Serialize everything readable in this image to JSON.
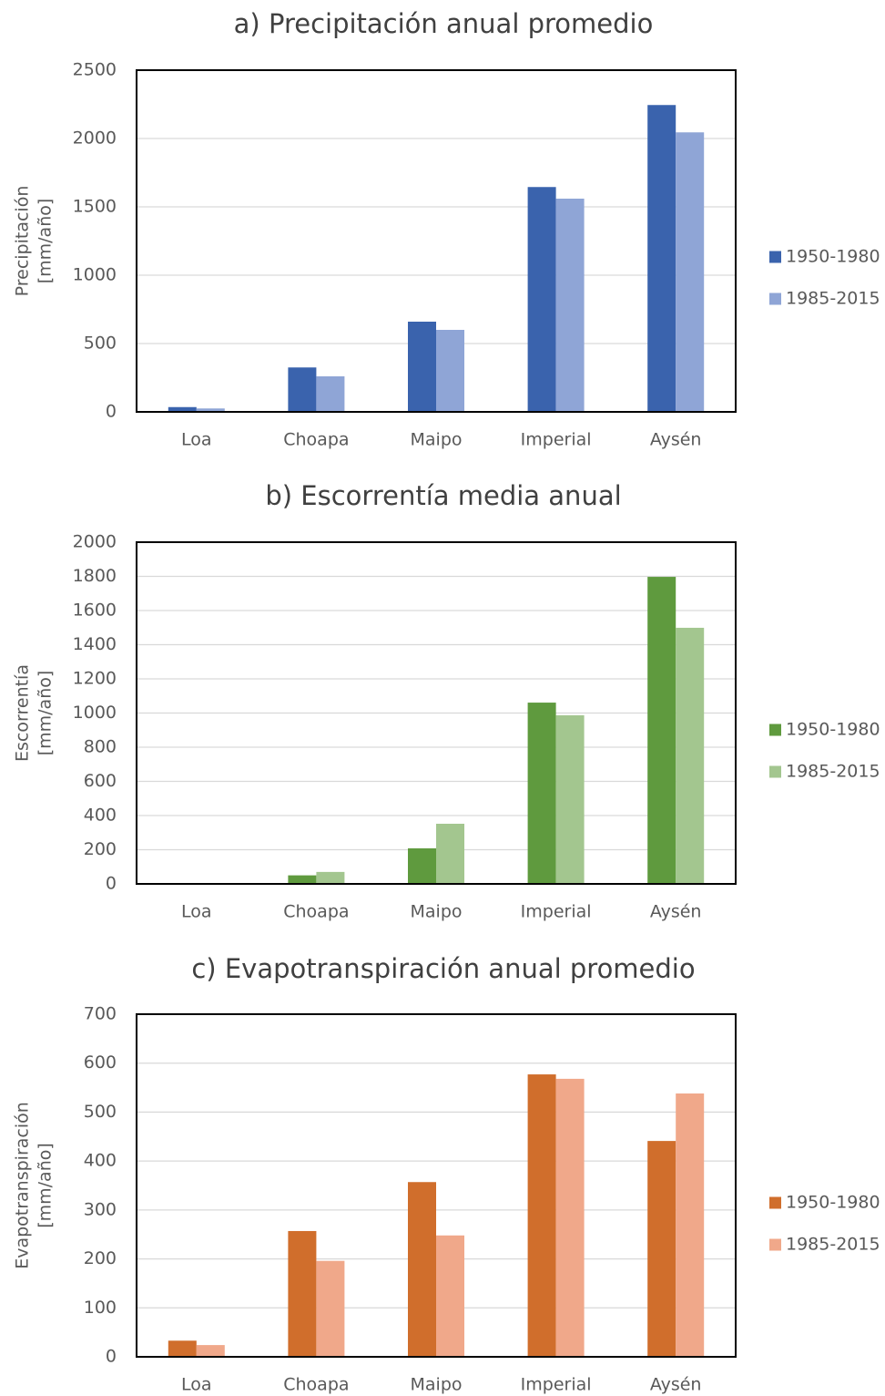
{
  "chart_data": [
    {
      "type": "bar",
      "title": "a) Precipitación anual promedio",
      "ylabel": [
        "Precipitación",
        "[mm/año]"
      ],
      "categories": [
        "Loa",
        "Choapa",
        "Maipo",
        "Imperial",
        "Aysén"
      ],
      "series": [
        {
          "name": "1950-1980",
          "color": "#3a63ad",
          "values": [
            35,
            325,
            660,
            1645,
            2245
          ]
        },
        {
          "name": "1985-2015",
          "color": "#8fa5d6",
          "values": [
            25,
            260,
            600,
            1560,
            2045
          ]
        }
      ],
      "ylim": [
        0,
        2500
      ],
      "yticks": [
        0,
        500,
        1000,
        1500,
        2000,
        2500
      ],
      "grid": true,
      "legend": "right"
    },
    {
      "type": "bar",
      "title": "b) Escorrentía media anual",
      "ylabel": [
        "Escorrentía",
        "[mm/año]"
      ],
      "categories": [
        "Loa",
        "Choapa",
        "Maipo",
        "Imperial",
        "Aysén"
      ],
      "series": [
        {
          "name": "1950-1980",
          "color": "#5f9a3e",
          "values": [
            0,
            50,
            208,
            1061,
            1797
          ]
        },
        {
          "name": "1985-2015",
          "color": "#a3c68f",
          "values": [
            0,
            70,
            352,
            987,
            1499
          ]
        }
      ],
      "ylim": [
        0,
        2000
      ],
      "yticks": [
        0,
        200,
        400,
        600,
        800,
        1000,
        1200,
        1400,
        1600,
        1800,
        2000
      ],
      "grid": true,
      "legend": "right"
    },
    {
      "type": "bar",
      "title": "c) Evapotranspiración anual promedio",
      "ylabel": [
        "Evapotranspiración",
        "[mm/año]"
      ],
      "categories": [
        "Loa",
        "Choapa",
        "Maipo",
        "Imperial",
        "Aysén"
      ],
      "series": [
        {
          "name": "1950-1980",
          "color": "#d06e2c",
          "values": [
            33,
            257,
            357,
            577,
            441
          ]
        },
        {
          "name": "1985-2015",
          "color": "#f0a88a",
          "values": [
            24,
            196,
            248,
            568,
            538
          ]
        }
      ],
      "ylim": [
        0,
        700
      ],
      "yticks": [
        0,
        100,
        200,
        300,
        400,
        500,
        600,
        700
      ],
      "grid": true,
      "legend": "right"
    }
  ]
}
